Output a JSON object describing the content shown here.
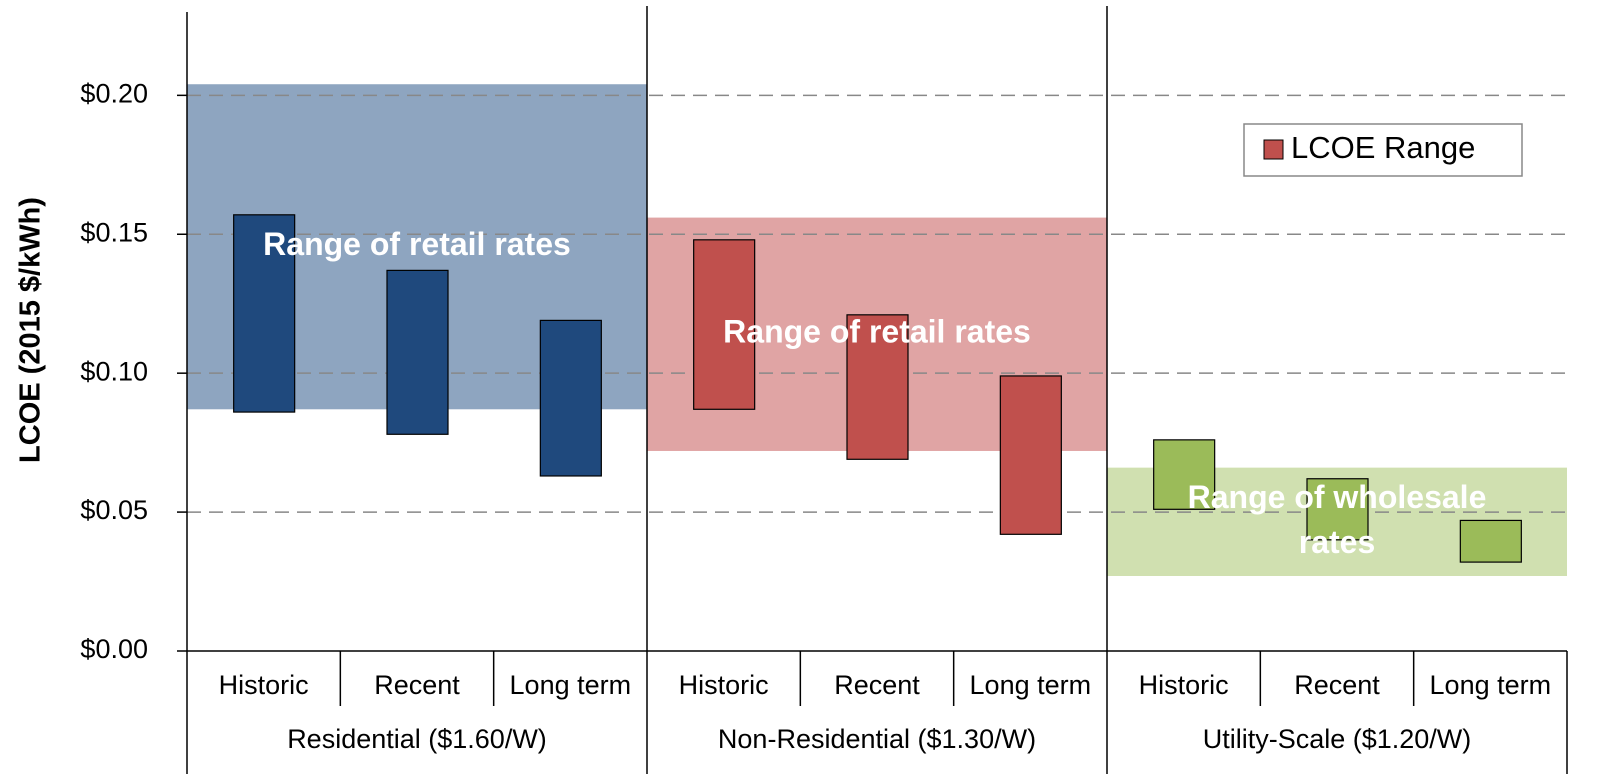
{
  "chart_data": {
    "type": "range_bar",
    "ylabel": "LCOE (2015 $/kWh)",
    "ylim": [
      0,
      0.23
    ],
    "yticks": [
      {
        "value": 0,
        "label": "$0.00"
      },
      {
        "value": 0.05,
        "label": "$0.05"
      },
      {
        "value": 0.1,
        "label": "$0.10"
      },
      {
        "value": 0.15,
        "label": "$0.15"
      },
      {
        "value": 0.2,
        "label": "$0.20"
      }
    ],
    "grid": true,
    "legend": {
      "name": "LCOE Range",
      "color": "#c0504d",
      "position": "upper right"
    },
    "groups": [
      {
        "name": "Residential ($1.60/W)",
        "color": "#1f497d",
        "band_color": "#8ea5c0",
        "band": {
          "label": [
            "Range of retail rates"
          ],
          "low": 0.087,
          "high": 0.204
        },
        "categories": [
          "Historic",
          "Recent",
          "Long term"
        ],
        "low": [
          0.086,
          0.078,
          0.063
        ],
        "high": [
          0.157,
          0.137,
          0.119
        ]
      },
      {
        "name": "Non-Residential ($1.30/W)",
        "color": "#c0504d",
        "band_color": "#e0a4a4",
        "band": {
          "label": [
            "Range of retail rates"
          ],
          "low": 0.072,
          "high": 0.156
        },
        "categories": [
          "Historic",
          "Recent",
          "Long term"
        ],
        "low": [
          0.087,
          0.069,
          0.042
        ],
        "high": [
          0.148,
          0.121,
          0.099
        ]
      },
      {
        "name": "Utility-Scale ($1.20/W)",
        "color": "#9bbb59",
        "band_color": "#d0e0b0",
        "band": {
          "label": [
            "Range of wholesale",
            "rates"
          ],
          "low": 0.027,
          "high": 0.066
        },
        "categories": [
          "Historic",
          "Recent",
          "Long term"
        ],
        "low": [
          0.051,
          0.04,
          0.032
        ],
        "high": [
          0.076,
          0.062,
          0.047
        ]
      }
    ]
  }
}
